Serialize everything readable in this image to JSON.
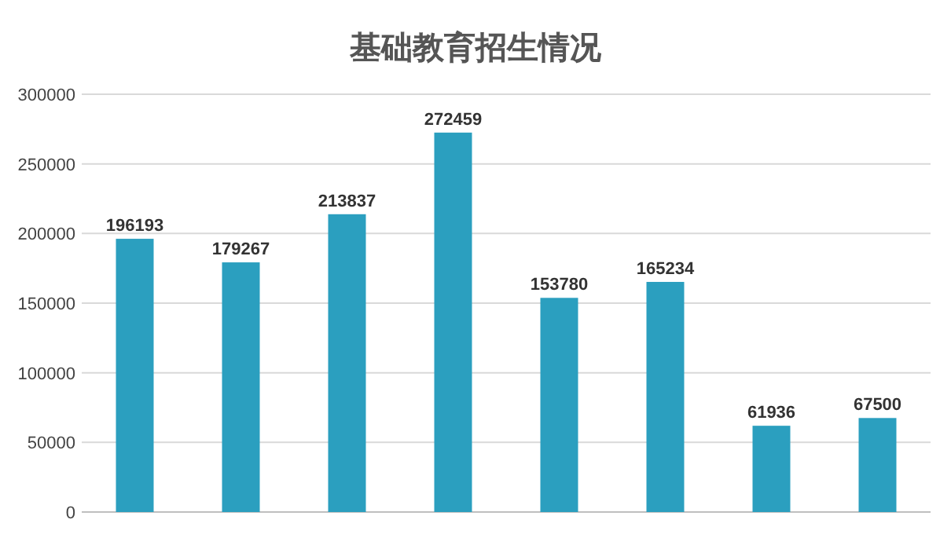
{
  "chart_data": {
    "type": "bar",
    "title": "基础教育招生情况",
    "categories": [
      null,
      null,
      null,
      null,
      null,
      null,
      null,
      null
    ],
    "values": [
      196193,
      179267,
      213837,
      272459,
      153780,
      165234,
      61936,
      67500
    ],
    "color": "#2b9fbf",
    "ylim": [
      0,
      300000
    ],
    "yticks": [
      0,
      50000,
      100000,
      150000,
      200000,
      250000,
      300000
    ],
    "grid": "y",
    "data_labels": true
  }
}
